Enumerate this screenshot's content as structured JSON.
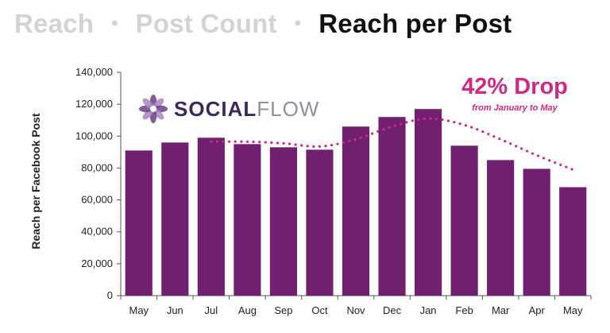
{
  "header": {
    "tab1": "Reach",
    "sep1": "•",
    "tab2": "Post Count",
    "sep2": "•",
    "tab3": "Reach per Post"
  },
  "logo": {
    "brand_social": "SOCIAL",
    "brand_flow": "FLOW"
  },
  "annotation": {
    "title": "42% Drop",
    "subtitle": "from January to May"
  },
  "colors": {
    "bar": "#70206e",
    "accent": "#cc2a84",
    "axis": "#555555",
    "logo_dark": "#3c2a55",
    "logo_light": "#8f8f9e"
  },
  "chart_data": {
    "type": "bar",
    "categories": [
      "May",
      "Jun",
      "Jul",
      "Aug",
      "Sep",
      "Oct",
      "Nov",
      "Dec",
      "Jan",
      "Feb",
      "Mar",
      "Apr",
      "May"
    ],
    "values": [
      91000,
      96000,
      99000,
      95000,
      93000,
      91500,
      106000,
      112000,
      117000,
      94000,
      85000,
      79500,
      68000
    ],
    "ylabel": "Reach per Facebook Post",
    "xlabel": "",
    "ylim": [
      0,
      140000
    ],
    "yticks": [
      0,
      20000,
      40000,
      60000,
      80000,
      100000,
      120000,
      140000
    ],
    "ytick_labels": [
      "0",
      "20,000",
      "40,000",
      "60,000",
      "80,000",
      "100,000",
      "120,000",
      "140,000"
    ],
    "trend_line": {
      "style": "dotted",
      "x": [
        "Jul",
        "Aug",
        "Sep",
        "Oct",
        "Nov",
        "Dec",
        "Jan",
        "Feb",
        "Mar",
        "Apr",
        "May"
      ],
      "values": [
        96500,
        96500,
        95500,
        93500,
        98000,
        106000,
        111000,
        107000,
        98000,
        88000,
        79000
      ]
    },
    "grid": false,
    "legend": "none"
  }
}
